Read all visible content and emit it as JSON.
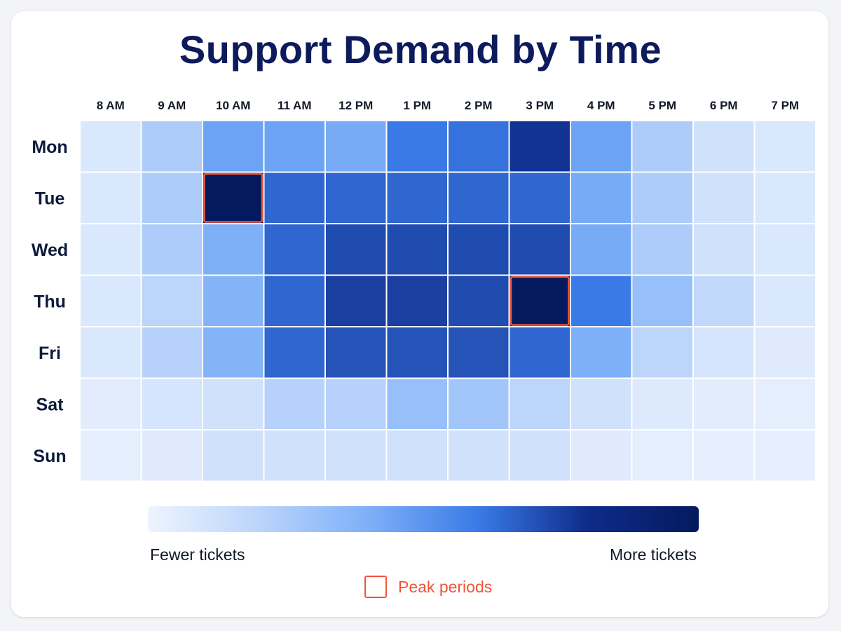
{
  "title": "Support Demand by Time",
  "chart_data": {
    "type": "heatmap",
    "title": "Support Demand by Time",
    "x_categories": [
      "8 AM",
      "9 AM",
      "10 AM",
      "11 AM",
      "12 PM",
      "1 PM",
      "2 PM",
      "3 PM",
      "4 PM",
      "5 PM",
      "6 PM",
      "7 PM"
    ],
    "y_categories": [
      "Mon",
      "Tue",
      "Wed",
      "Thu",
      "Fri",
      "Sat",
      "Sun"
    ],
    "values": [
      [
        0.08,
        0.25,
        0.45,
        0.45,
        0.42,
        0.6,
        0.62,
        0.78,
        0.45,
        0.25,
        0.12,
        0.08
      ],
      [
        0.08,
        0.25,
        1.0,
        0.65,
        0.65,
        0.65,
        0.65,
        0.65,
        0.42,
        0.25,
        0.12,
        0.08
      ],
      [
        0.08,
        0.25,
        0.4,
        0.65,
        0.72,
        0.72,
        0.72,
        0.72,
        0.42,
        0.25,
        0.12,
        0.08
      ],
      [
        0.08,
        0.2,
        0.38,
        0.65,
        0.75,
        0.75,
        0.72,
        1.0,
        0.6,
        0.32,
        0.18,
        0.08
      ],
      [
        0.08,
        0.22,
        0.38,
        0.65,
        0.7,
        0.7,
        0.7,
        0.65,
        0.4,
        0.2,
        0.1,
        0.06
      ],
      [
        0.05,
        0.1,
        0.12,
        0.22,
        0.22,
        0.32,
        0.28,
        0.2,
        0.12,
        0.07,
        0.05,
        0.04
      ],
      [
        0.04,
        0.06,
        0.12,
        0.12,
        0.12,
        0.12,
        0.12,
        0.12,
        0.06,
        0.04,
        0.03,
        0.03
      ]
    ],
    "color_scale": [
      "#eef4fe",
      "#bcd5fb",
      "#7eb0f8",
      "#3a7ae6",
      "#0f2b8a",
      "#041a5e"
    ],
    "peaks": [
      {
        "day": "Tue",
        "time": "10 AM"
      },
      {
        "day": "Thu",
        "time": "3 PM"
      }
    ],
    "peak_color": "#f0553a",
    "legend": {
      "min_label": "Fewer tickets",
      "max_label": "More tickets",
      "peak_label": "Peak periods"
    }
  }
}
